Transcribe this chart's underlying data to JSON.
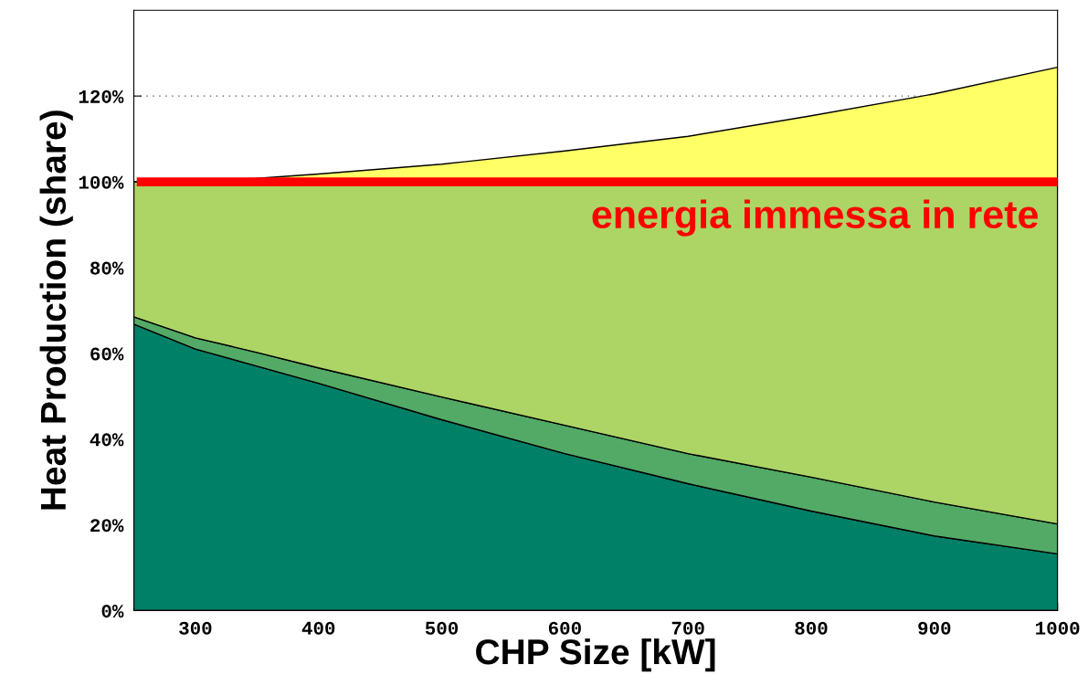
{
  "chart_data": {
    "type": "area",
    "stacked": true,
    "xlabel": "CHP Size [kW]",
    "ylabel": "Heat Production (share)",
    "x": [
      250,
      300,
      350,
      400,
      500,
      600,
      700,
      800,
      900,
      1000
    ],
    "series": [
      {
        "color": "#008066",
        "values": [
          66.8,
          61,
          57,
          53,
          44.5,
          36.6,
          29.6,
          23.2,
          17.4,
          13.2
        ]
      },
      {
        "color": "#52aa66",
        "values": [
          1.7,
          2.6,
          3.2,
          3.6,
          5.3,
          6.6,
          7,
          7.9,
          7.9,
          7
        ]
      },
      {
        "color": "#acd566",
        "values": [
          31.5,
          36.4,
          39.8,
          43.4,
          50.2,
          56.8,
          63.4,
          68.9,
          74.7,
          79.8
        ]
      },
      {
        "color": "#ffff66",
        "values": [
          0,
          0.3,
          0.8,
          1.8,
          4.1,
          7.2,
          10.6,
          15.4,
          20.5,
          26.7
        ]
      }
    ],
    "xlim": [
      250,
      1000
    ],
    "xticks": [
      300,
      400,
      500,
      600,
      700,
      800,
      900,
      1000
    ],
    "ylim": [
      0,
      140
    ],
    "yticks": [
      {
        "value": 0,
        "label": "0%"
      },
      {
        "value": 20,
        "label": "20%"
      },
      {
        "value": 40,
        "label": "40%"
      },
      {
        "value": 60,
        "label": "60%"
      },
      {
        "value": 80,
        "label": "80%"
      },
      {
        "value": 100,
        "label": "100%"
      },
      {
        "value": 120,
        "label": "120%"
      }
    ],
    "ref_lines": [
      {
        "axis": "y",
        "value": 100,
        "label": "energia immessa in rete",
        "color": "#ff0000"
      },
      {
        "axis": "y",
        "value": 120,
        "color": "#555555",
        "line_style": "dotted"
      }
    ]
  }
}
